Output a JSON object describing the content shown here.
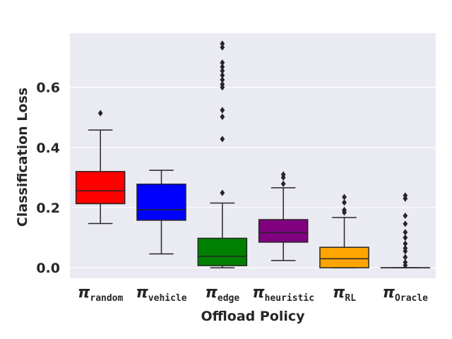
{
  "chart_data": {
    "type": "boxplot",
    "xlabel": "Offload Policy",
    "ylabel": "Classification Loss",
    "ylim": [
      -0.035,
      0.78
    ],
    "yticks": [
      0.0,
      0.2,
      0.4,
      0.6
    ],
    "ytick_labels": [
      "0.0",
      "0.2",
      "0.4",
      "0.6"
    ],
    "grid": true,
    "categories": [
      {
        "symbol": "π",
        "subscript": "random",
        "color": "#ff0000",
        "whisker_low": 0.147,
        "q1": 0.213,
        "median": 0.256,
        "q3": 0.32,
        "whisker_high": 0.458,
        "outliers": [
          0.514
        ]
      },
      {
        "symbol": "π",
        "subscript": "vehicle",
        "color": "#0000ff",
        "whisker_low": 0.046,
        "q1": 0.158,
        "median": 0.193,
        "q3": 0.278,
        "whisker_high": 0.324,
        "outliers": []
      },
      {
        "symbol": "π",
        "subscript": "edge",
        "color": "#008000",
        "whisker_low": 0.0,
        "q1": 0.007,
        "median": 0.038,
        "q3": 0.098,
        "whisker_high": 0.215,
        "outliers": [
          0.249,
          0.428,
          0.502,
          0.524,
          0.6,
          0.61,
          0.625,
          0.64,
          0.655,
          0.668,
          0.682,
          0.733,
          0.745
        ]
      },
      {
        "symbol": "π",
        "subscript": "heuristic",
        "color": "#800080",
        "whisker_low": 0.024,
        "q1": 0.085,
        "median": 0.117,
        "q3": 0.16,
        "whisker_high": 0.266,
        "outliers": [
          0.279,
          0.3,
          0.31
        ]
      },
      {
        "symbol": "π",
        "subscript": "RL",
        "color": "#ffa500",
        "whisker_low": 0.0,
        "q1": 0.0,
        "median": 0.03,
        "q3": 0.068,
        "whisker_high": 0.167,
        "outliers": [
          0.184,
          0.192,
          0.217,
          0.235
        ]
      },
      {
        "symbol": "π",
        "subscript": "Oracle",
        "color": "#ffa500",
        "whisker_low": 0.0,
        "q1": 0.0,
        "median": 0.0,
        "q3": 0.0,
        "whisker_high": 0.0,
        "outliers": [
          0.008,
          0.018,
          0.035,
          0.055,
          0.065,
          0.08,
          0.1,
          0.118,
          0.146,
          0.173,
          0.23,
          0.24
        ]
      }
    ],
    "colors": {
      "background": "#eaeaf2",
      "grid": "#ffffff",
      "line": "#262626"
    }
  }
}
